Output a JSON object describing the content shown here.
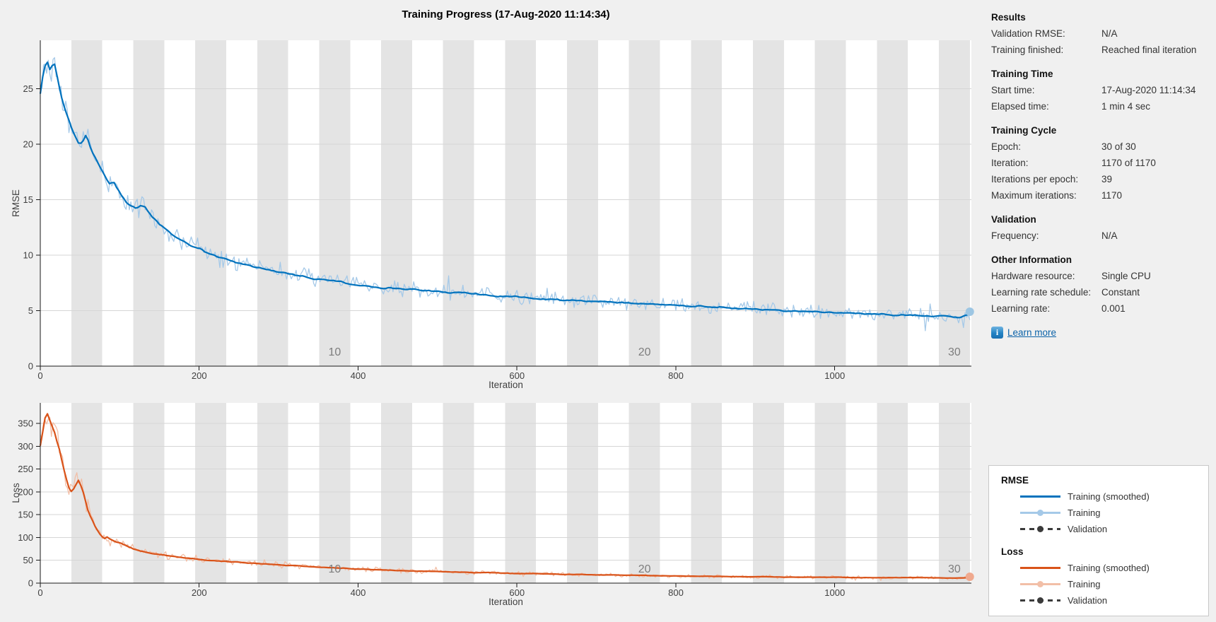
{
  "title": "Training Progress (17-Aug-2020 11:14:34)",
  "sidebar": {
    "sections": [
      {
        "heading": "Results",
        "rows": [
          {
            "label": "Validation RMSE:",
            "value": "N/A"
          },
          {
            "label": "Training finished:",
            "value": "Reached final iteration"
          }
        ]
      },
      {
        "heading": "Training Time",
        "rows": [
          {
            "label": "Start time:",
            "value": "17-Aug-2020 11:14:34"
          },
          {
            "label": "Elapsed time:",
            "value": "1 min 4 sec"
          }
        ]
      },
      {
        "heading": "Training Cycle",
        "rows": [
          {
            "label": "Epoch:",
            "value": "30 of 30"
          },
          {
            "label": "Iteration:",
            "value": "1170 of 1170"
          },
          {
            "label": "Iterations per epoch:",
            "value": "39"
          },
          {
            "label": "Maximum iterations:",
            "value": "1170"
          }
        ]
      },
      {
        "heading": "Validation",
        "rows": [
          {
            "label": "Frequency:",
            "value": "N/A"
          }
        ]
      },
      {
        "heading": "Other Information",
        "rows": [
          {
            "label": "Hardware resource:",
            "value": "Single CPU"
          },
          {
            "label": "Learning rate schedule:",
            "value": "Constant"
          },
          {
            "label": "Learning rate:",
            "value": "0.001"
          }
        ]
      }
    ],
    "learn_more_label": "Learn more",
    "info_glyph": "i"
  },
  "legend": {
    "groups": [
      {
        "heading": "RMSE",
        "entries": [
          {
            "label": "Training (smoothed)",
            "style": "solid",
            "color": "#0072bd"
          },
          {
            "label": "Training",
            "style": "marker",
            "color": "#a5c9e8"
          },
          {
            "label": "Validation",
            "style": "dashed-marker",
            "color": "#3b3b3b"
          }
        ]
      },
      {
        "heading": "Loss",
        "entries": [
          {
            "label": "Training (smoothed)",
            "style": "solid",
            "color": "#d95319"
          },
          {
            "label": "Training",
            "style": "marker",
            "color": "#f2bfa7"
          },
          {
            "label": "Validation",
            "style": "dashed-marker",
            "color": "#3b3b3b"
          }
        ]
      }
    ]
  },
  "colors": {
    "figure_bg": "#f0f0f0",
    "plot_bg": "#ffffff",
    "epoch_band": "#e4e4e4",
    "gridline": "#d6d6d6",
    "axis": "#1a1a1a",
    "tick_text": "#404040",
    "epoch_text": "#7d7d7d",
    "rmse_smoothed": "#0072bd",
    "rmse_raw": "#a5c9e8",
    "rmse_marker": "#9dc6e3",
    "loss_smoothed": "#d95319",
    "loss_raw": "#f2bfa7",
    "loss_marker": "#f0a98e"
  },
  "chart_data": [
    {
      "type": "line",
      "name": "rmse",
      "xlabel": "Iteration",
      "ylabel": "RMSE",
      "xlim": [
        0,
        1172
      ],
      "ylim": [
        0,
        29.35
      ],
      "xticks": [
        0,
        200,
        400,
        600,
        800,
        1000
      ],
      "yticks": [
        0,
        5,
        10,
        15,
        20,
        25
      ],
      "grid": "horizontal",
      "epochs": 30,
      "iterations_per_epoch": 39,
      "epoch_labels": [
        {
          "epoch": 10,
          "text": "10"
        },
        {
          "epoch": 20,
          "text": "20"
        },
        {
          "epoch": 30,
          "text": "30"
        }
      ],
      "series": [
        {
          "name": "Training (smoothed)",
          "color": "#0072bd",
          "points": [
            [
              0,
              24.5
            ],
            [
              3,
              26.0
            ],
            [
              6,
              27.0
            ],
            [
              9,
              27.3
            ],
            [
              12,
              26.6
            ],
            [
              15,
              26.9
            ],
            [
              18,
              27.1
            ],
            [
              22,
              25.8
            ],
            [
              26,
              24.3
            ],
            [
              30,
              23.4
            ],
            [
              35,
              22.3
            ],
            [
              40,
              21.3
            ],
            [
              45,
              20.4
            ],
            [
              50,
              19.9
            ],
            [
              54,
              20.2
            ],
            [
              58,
              20.9
            ],
            [
              62,
              19.9
            ],
            [
              66,
              19.2
            ],
            [
              72,
              18.4
            ],
            [
              78,
              17.5
            ],
            [
              84,
              16.8
            ],
            [
              88,
              16.4
            ],
            [
              92,
              16.7
            ],
            [
              96,
              16.1
            ],
            [
              102,
              15.4
            ],
            [
              108,
              14.8
            ],
            [
              114,
              14.4
            ],
            [
              120,
              14.2
            ],
            [
              126,
              14.4
            ],
            [
              132,
              14.3
            ],
            [
              138,
              13.8
            ],
            [
              145,
              13.2
            ],
            [
              152,
              12.7
            ],
            [
              160,
              12.2
            ],
            [
              168,
              11.8
            ],
            [
              176,
              11.4
            ],
            [
              184,
              11.1
            ],
            [
              192,
              10.8
            ],
            [
              200,
              10.6
            ],
            [
              210,
              10.2
            ],
            [
              220,
              9.9
            ],
            [
              230,
              9.7
            ],
            [
              240,
              9.5
            ],
            [
              250,
              9.3
            ],
            [
              258,
              9.2
            ],
            [
              266,
              9.0
            ],
            [
              274,
              8.9
            ],
            [
              282,
              8.8
            ],
            [
              290,
              8.7
            ],
            [
              300,
              8.5
            ],
            [
              310,
              8.4
            ],
            [
              320,
              8.2
            ],
            [
              330,
              8.1
            ],
            [
              340,
              7.9
            ],
            [
              350,
              7.8
            ],
            [
              360,
              7.8
            ],
            [
              370,
              7.7
            ],
            [
              380,
              7.6
            ],
            [
              390,
              7.3
            ],
            [
              400,
              7.3
            ],
            [
              410,
              7.2
            ],
            [
              420,
              7.1
            ],
            [
              430,
              7.0
            ],
            [
              440,
              7.1
            ],
            [
              450,
              7.0
            ],
            [
              460,
              6.9
            ],
            [
              470,
              7.0
            ],
            [
              480,
              6.8
            ],
            [
              490,
              6.8
            ],
            [
              500,
              6.7
            ],
            [
              515,
              6.6
            ],
            [
              530,
              6.6
            ],
            [
              545,
              6.5
            ],
            [
              560,
              6.4
            ],
            [
              575,
              6.3
            ],
            [
              590,
              6.3
            ],
            [
              605,
              6.2
            ],
            [
              620,
              6.1
            ],
            [
              635,
              6.0
            ],
            [
              650,
              6.0
            ],
            [
              665,
              5.9
            ],
            [
              680,
              5.9
            ],
            [
              695,
              5.8
            ],
            [
              710,
              5.8
            ],
            [
              725,
              5.7
            ],
            [
              740,
              5.7
            ],
            [
              755,
              5.6
            ],
            [
              770,
              5.6
            ],
            [
              785,
              5.5
            ],
            [
              800,
              5.5
            ],
            [
              815,
              5.4
            ],
            [
              830,
              5.4
            ],
            [
              845,
              5.3
            ],
            [
              860,
              5.3
            ],
            [
              875,
              5.2
            ],
            [
              890,
              5.2
            ],
            [
              905,
              5.1
            ],
            [
              920,
              5.1
            ],
            [
              935,
              5.0
            ],
            [
              950,
              5.0
            ],
            [
              965,
              4.9
            ],
            [
              980,
              4.9
            ],
            [
              1000,
              4.8
            ],
            [
              1020,
              4.8
            ],
            [
              1040,
              4.7
            ],
            [
              1060,
              4.7
            ],
            [
              1080,
              4.6
            ],
            [
              1100,
              4.6
            ],
            [
              1120,
              4.5
            ],
            [
              1140,
              4.5
            ],
            [
              1158,
              4.4
            ],
            [
              1170,
              4.7
            ]
          ]
        },
        {
          "name": "Training",
          "color": "#a5c9e8",
          "derived": "noisy-raw",
          "noise_base": 0.5,
          "noise_scale": 0.042
        },
        {
          "name": "Validation",
          "color": "#3b3b3b",
          "points": []
        }
      ],
      "final_marker": {
        "x": 1170,
        "y": 4.9,
        "color": "#9dc6e3"
      }
    },
    {
      "type": "line",
      "name": "loss",
      "xlabel": "Iteration",
      "ylabel": "Loss",
      "xlim": [
        0,
        1172
      ],
      "ylim": [
        0,
        395
      ],
      "xticks": [
        0,
        200,
        400,
        600,
        800,
        1000
      ],
      "yticks": [
        0,
        50,
        100,
        150,
        200,
        250,
        300,
        350
      ],
      "grid": "horizontal",
      "epochs": 30,
      "iterations_per_epoch": 39,
      "epoch_labels": [
        {
          "epoch": 10,
          "text": "10"
        },
        {
          "epoch": 20,
          "text": "20"
        },
        {
          "epoch": 30,
          "text": "30"
        }
      ],
      "series": [
        {
          "name": "Training (smoothed)",
          "color": "#d95319",
          "points": [
            [
              0,
              300
            ],
            [
              3,
              330
            ],
            [
              6,
              360
            ],
            [
              9,
              370
            ],
            [
              12,
              358
            ],
            [
              15,
              345
            ],
            [
              18,
              330
            ],
            [
              21,
              312
            ],
            [
              24,
              295
            ],
            [
              27,
              272
            ],
            [
              30,
              248
            ],
            [
              33,
              228
            ],
            [
              36,
              210
            ],
            [
              40,
              200
            ],
            [
              44,
              212
            ],
            [
              48,
              224
            ],
            [
              52,
              210
            ],
            [
              56,
              185
            ],
            [
              60,
              160
            ],
            [
              64,
              143
            ],
            [
              68,
              128
            ],
            [
              72,
              115
            ],
            [
              76,
              105
            ],
            [
              80,
              97
            ],
            [
              84,
              100
            ],
            [
              88,
              96
            ],
            [
              92,
              93
            ],
            [
              96,
              90
            ],
            [
              100,
              88
            ],
            [
              108,
              82
            ],
            [
              116,
              76
            ],
            [
              124,
              71
            ],
            [
              132,
              68
            ],
            [
              140,
              65
            ],
            [
              148,
              63
            ],
            [
              156,
              61
            ],
            [
              164,
              59
            ],
            [
              172,
              57
            ],
            [
              180,
              56
            ],
            [
              190,
              54
            ],
            [
              200,
              52
            ],
            [
              212,
              50
            ],
            [
              224,
              49
            ],
            [
              236,
              47
            ],
            [
              248,
              46
            ],
            [
              260,
              44
            ],
            [
              272,
              43
            ],
            [
              284,
              42
            ],
            [
              296,
              41
            ],
            [
              310,
              39
            ],
            [
              324,
              38
            ],
            [
              338,
              36
            ],
            [
              352,
              35
            ],
            [
              366,
              34
            ],
            [
              380,
              33
            ],
            [
              396,
              31
            ],
            [
              412,
              30
            ],
            [
              428,
              29
            ],
            [
              444,
              28
            ],
            [
              460,
              27
            ],
            [
              476,
              26
            ],
            [
              492,
              26
            ],
            [
              510,
              25
            ],
            [
              528,
              24
            ],
            [
              546,
              23
            ],
            [
              564,
              23
            ],
            [
              582,
              22
            ],
            [
              600,
              21
            ],
            [
              620,
              21
            ],
            [
              640,
              20
            ],
            [
              660,
              19
            ],
            [
              680,
              19
            ],
            [
              700,
              18
            ],
            [
              720,
              18
            ],
            [
              740,
              17
            ],
            [
              760,
              17
            ],
            [
              780,
              16
            ],
            [
              800,
              16
            ],
            [
              820,
              15
            ],
            [
              840,
              15
            ],
            [
              860,
              15
            ],
            [
              880,
              14
            ],
            [
              900,
              14
            ],
            [
              920,
              14
            ],
            [
              940,
              13
            ],
            [
              960,
              13
            ],
            [
              980,
              13
            ],
            [
              1000,
              13
            ],
            [
              1030,
              12
            ],
            [
              1060,
              12
            ],
            [
              1090,
              12
            ],
            [
              1120,
              12
            ],
            [
              1150,
              11
            ],
            [
              1170,
              12
            ]
          ]
        },
        {
          "name": "Training",
          "color": "#f2bfa7",
          "derived": "noisy-raw",
          "noise_base": 3.0,
          "noise_scale": 0.105
        },
        {
          "name": "Validation",
          "color": "#3b3b3b",
          "points": []
        }
      ],
      "final_marker": {
        "x": 1170,
        "y": 14,
        "color": "#f0a98e"
      }
    }
  ]
}
